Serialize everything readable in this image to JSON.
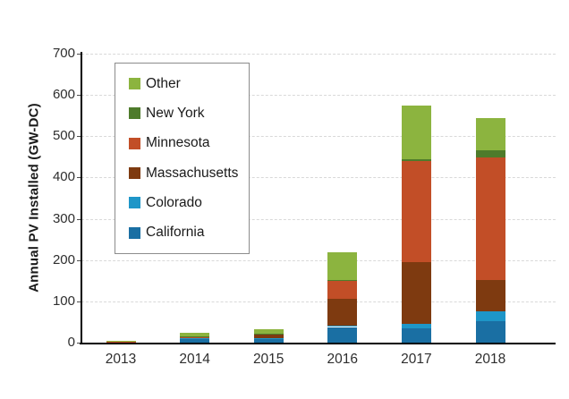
{
  "chart_data": {
    "type": "bar",
    "stacked": true,
    "title": "",
    "xlabel": "",
    "ylabel": "Annual PV Installed (GW-DC)",
    "ylim": [
      0,
      700
    ],
    "yticks": [
      0,
      100,
      200,
      300,
      400,
      500,
      600,
      700
    ],
    "grid": "horizontal dashed light-gray",
    "legend_position": "inside upper-left, bordered box",
    "legend_order_top_to_bottom": [
      "Other",
      "New York",
      "Minnesota",
      "Massachusetts",
      "Colorado",
      "California"
    ],
    "categories": [
      "2013",
      "2014",
      "2015",
      "2016",
      "2017",
      "2018"
    ],
    "series": [
      {
        "name": "California",
        "color": "#1A6FA3",
        "values": [
          1.5,
          10,
          8,
          38,
          35,
          53
        ]
      },
      {
        "name": "Colorado",
        "color": "#1E96C8",
        "values": [
          0.5,
          2,
          2,
          4,
          11,
          22
        ]
      },
      {
        "name": "Massachusetts",
        "color": "#7E3A10",
        "values": [
          0.5,
          1,
          10,
          65,
          149,
          77
        ]
      },
      {
        "name": "Minnesota",
        "color": "#C24E27",
        "values": [
          0.5,
          1,
          1,
          43,
          245,
          297
        ]
      },
      {
        "name": "New York",
        "color": "#4E7B2B",
        "values": [
          0.5,
          1,
          1,
          2,
          5,
          16
        ]
      },
      {
        "name": "Other",
        "color": "#8CB43F",
        "values": [
          1.5,
          8,
          11,
          66,
          130,
          78
        ]
      }
    ],
    "axis_color": "#000000",
    "tick_label_color": "#2e2e2e"
  }
}
